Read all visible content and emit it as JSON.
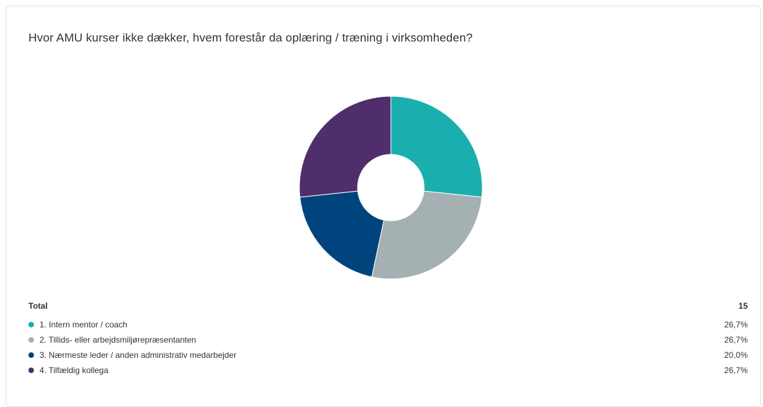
{
  "title": "Hvor AMU kurser ikke dækker, hvem forestår da oplæring / træning i virksomheden?",
  "total": {
    "label": "Total",
    "value": "15"
  },
  "chart_data": {
    "type": "pie",
    "donut": true,
    "title": "Hvor AMU kurser ikke dækker, hvem forestår da oplæring / træning i virksomheden?",
    "categories": [
      "1. Intern mentor / coach",
      "2. Tillids- eller arbejdsmiljørepræsentanten",
      "3. Nærmeste leder / anden administrativ medarbejder",
      "4. Tilfældig kollega"
    ],
    "values": [
      26.7,
      26.7,
      20.0,
      26.7
    ],
    "labels": [
      "26,7%",
      "26,7%",
      "20,0%",
      "26,7%"
    ],
    "colors": [
      "#1aafae",
      "#a4b0b1",
      "#00447e",
      "#4f2e6b"
    ],
    "total": 15,
    "legend": "bottom"
  }
}
